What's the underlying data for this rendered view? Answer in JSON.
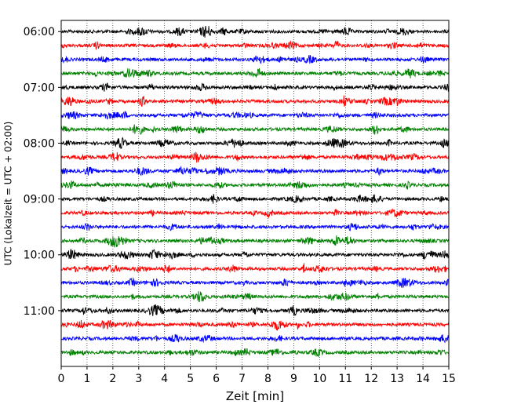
{
  "chart_data": {
    "type": "line",
    "title": "",
    "xlabel": "Zeit  [min]",
    "ylabel": "UTC (Lokalzeit = UTC + 02:00)",
    "xlim": [
      0,
      15
    ],
    "x_ticks": [
      "0",
      "1",
      "2",
      "3",
      "4",
      "5",
      "6",
      "7",
      "8",
      "9",
      "10",
      "11",
      "12",
      "13",
      "14",
      "15"
    ],
    "y_ticks": [
      {
        "label": "06:00",
        "hour": 6.0
      },
      {
        "label": "07:00",
        "hour": 7.0
      },
      {
        "label": "08:00",
        "hour": 8.0
      },
      {
        "label": "09:00",
        "hour": 9.0
      },
      {
        "label": "10:00",
        "hour": 10.0
      },
      {
        "label": "11:00",
        "hour": 11.0
      }
    ],
    "ylim_hours": [
      5.8,
      12.0
    ],
    "grid": "vertical dotted lines at each minute",
    "trace_colors": [
      "#000000",
      "#ff0000",
      "#0000ff",
      "#008000"
    ],
    "series": [
      {
        "start": "06:00",
        "hour": 6.0,
        "color": "#000000"
      },
      {
        "start": "06:15",
        "hour": 6.25,
        "color": "#ff0000"
      },
      {
        "start": "06:30",
        "hour": 6.5,
        "color": "#0000ff"
      },
      {
        "start": "06:45",
        "hour": 6.75,
        "color": "#008000"
      },
      {
        "start": "07:00",
        "hour": 7.0,
        "color": "#000000"
      },
      {
        "start": "07:15",
        "hour": 7.25,
        "color": "#ff0000"
      },
      {
        "start": "07:30",
        "hour": 7.5,
        "color": "#0000ff"
      },
      {
        "start": "07:45",
        "hour": 7.75,
        "color": "#008000"
      },
      {
        "start": "08:00",
        "hour": 8.0,
        "color": "#000000"
      },
      {
        "start": "08:15",
        "hour": 8.25,
        "color": "#ff0000"
      },
      {
        "start": "08:30",
        "hour": 8.5,
        "color": "#0000ff"
      },
      {
        "start": "08:45",
        "hour": 8.75,
        "color": "#008000"
      },
      {
        "start": "09:00",
        "hour": 9.0,
        "color": "#000000"
      },
      {
        "start": "09:15",
        "hour": 9.25,
        "color": "#ff0000"
      },
      {
        "start": "09:30",
        "hour": 9.5,
        "color": "#0000ff"
      },
      {
        "start": "09:45",
        "hour": 9.75,
        "color": "#008000"
      },
      {
        "start": "10:00",
        "hour": 10.0,
        "color": "#000000"
      },
      {
        "start": "10:15",
        "hour": 10.25,
        "color": "#ff0000"
      },
      {
        "start": "10:30",
        "hour": 10.5,
        "color": "#0000ff"
      },
      {
        "start": "10:45",
        "hour": 10.75,
        "color": "#008000"
      },
      {
        "start": "11:00",
        "hour": 11.0,
        "color": "#000000"
      },
      {
        "start": "11:15",
        "hour": 11.25,
        "color": "#ff0000"
      },
      {
        "start": "11:30",
        "hour": 11.5,
        "color": "#0000ff"
      },
      {
        "start": "11:45",
        "hour": 11.75,
        "color": "#008000"
      }
    ]
  }
}
